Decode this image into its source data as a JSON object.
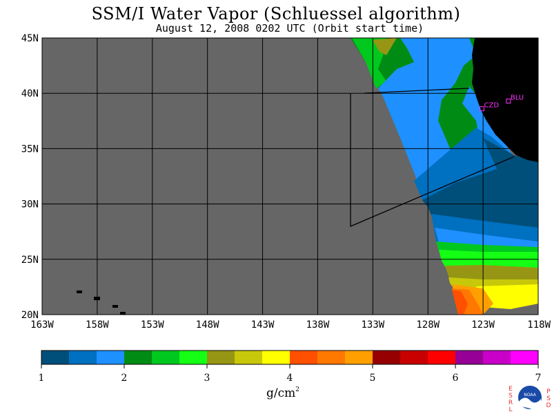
{
  "title": "SSM/I Water Vapor (Schluessel algorithm)",
  "subtitle": "August 12, 2008  0202 UTC  (Orbit start time)",
  "map": {
    "lon_range": [
      -163,
      -118
    ],
    "lat_range": [
      20,
      45
    ],
    "lat_ticks": [
      "45N",
      "40N",
      "35N",
      "30N",
      "25N",
      "20N"
    ],
    "lon_ticks": [
      "163W",
      "158W",
      "153W",
      "148W",
      "143W",
      "138W",
      "133W",
      "128W",
      "123W",
      "118W"
    ],
    "no_data_color": "#666666",
    "land_color": "#000000",
    "stations": [
      {
        "name": "CZD",
        "lon": -123.1,
        "lat": 38.6,
        "color": "#ff33ff"
      },
      {
        "name": "BLU",
        "lon": -120.7,
        "lat": 39.3,
        "color": "#ff33ff"
      }
    ]
  },
  "colorbar": {
    "colors": [
      "#004f7a",
      "#0070c0",
      "#1e90ff",
      "#008c14",
      "#00c81e",
      "#14ff14",
      "#969614",
      "#c8c80a",
      "#ffff00",
      "#ff5000",
      "#ff7800",
      "#ffa000",
      "#960000",
      "#c80000",
      "#ff0000",
      "#960096",
      "#c800c8",
      "#ff00ff"
    ],
    "tick_labels": [
      "1",
      "2",
      "3",
      "4",
      "5",
      "6",
      "7"
    ],
    "unit_label": "g/cm",
    "unit_exp": "2"
  },
  "logo": {
    "left_letters": [
      "E",
      "S",
      "R",
      "L"
    ],
    "right_letters": [
      "P",
      "S",
      "D"
    ],
    "center_text": "NOAA"
  }
}
